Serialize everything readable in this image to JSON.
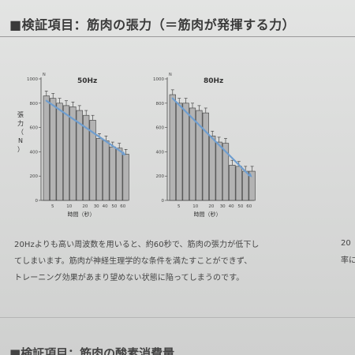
{
  "header": {
    "title": "■検証項目：筋肉の張力（＝筋肉が発揮する力）"
  },
  "chart_data": [
    {
      "type": "bar",
      "title": "50Hz",
      "ylabel": "張力（N）",
      "y_unit": "N",
      "xlabel": "時間（秒）",
      "ylim": [
        0,
        1000
      ],
      "yticks": [
        0,
        200,
        400,
        600,
        800,
        1000
      ],
      "xticks": [
        5,
        10,
        20,
        30,
        40,
        50,
        60
      ],
      "x": [
        2,
        4,
        6,
        8,
        10,
        12,
        15,
        20,
        25,
        30,
        40,
        50,
        60
      ],
      "values": [
        860,
        840,
        800,
        780,
        770,
        740,
        700,
        660,
        510,
        490,
        440,
        430,
        380
      ],
      "errors": [
        40,
        40,
        40,
        40,
        40,
        40,
        40,
        40,
        40,
        40,
        40,
        40,
        40
      ],
      "trend": {
        "x": [
          2,
          60
        ],
        "y": [
          820,
          370
        ]
      },
      "colors": {
        "bar": "#b3b3b3",
        "bar_edge": "#3a3a3a",
        "trend": "#6f9ecf"
      }
    },
    {
      "type": "bar",
      "title": "80Hz",
      "ylabel": "",
      "y_unit": "N",
      "xlabel": "時間（秒）",
      "ylim": [
        0,
        1000
      ],
      "yticks": [
        0,
        200,
        400,
        600,
        800,
        1000
      ],
      "xticks": [
        5,
        10,
        20,
        30,
        40,
        50,
        60
      ],
      "x": [
        2,
        4,
        6,
        8,
        10,
        12,
        15,
        20,
        25,
        30,
        40,
        50,
        60
      ],
      "values": [
        870,
        800,
        800,
        760,
        740,
        720,
        530,
        480,
        470,
        290,
        280,
        240,
        240
      ],
      "errors": [
        40,
        40,
        40,
        40,
        40,
        40,
        40,
        40,
        40,
        40,
        40,
        40,
        40
      ],
      "trend": {
        "x": [
          2,
          60
        ],
        "y": [
          840,
          190
        ]
      },
      "colors": {
        "bar": "#b3b3b3",
        "bar_edge": "#3a3a3a",
        "trend": "#6f9ecf"
      }
    }
  ],
  "body": {
    "lines": [
      "20Hzよりも高い周波数を用いると、約60秒で、筋肉の張力が低下し",
      "てしまいます。筋肉が神経生理学的な条件を満たすことができず、",
      "トレーニング効果があまり望めない状態に陥ってしまうのです。"
    ],
    "side_fragment": [
      "20",
      "率に"
    ]
  },
  "next_section": {
    "title": "■検証項目：筋肉の酸素消費量"
  }
}
